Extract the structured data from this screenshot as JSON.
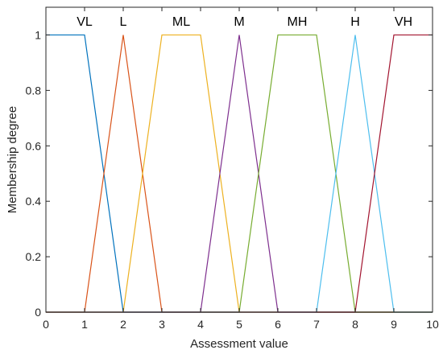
{
  "chart_data": {
    "type": "line",
    "title": "",
    "xlabel": "Assessment value",
    "ylabel": "Membership degree",
    "xlim": [
      0,
      10
    ],
    "ylim": [
      0,
      1.1
    ],
    "xticks": [
      "0",
      "1",
      "2",
      "3",
      "4",
      "5",
      "6",
      "7",
      "8",
      "9",
      "10"
    ],
    "yticks": [
      "0",
      "0.2",
      "0.4",
      "0.6",
      "0.8",
      "1"
    ],
    "grid": false,
    "series": [
      {
        "name": "VL",
        "color": "#0072BD",
        "x": [
          0,
          1,
          2,
          10
        ],
        "y": [
          1,
          1,
          0,
          0
        ]
      },
      {
        "name": "L",
        "color": "#D95319",
        "x": [
          0,
          1,
          2,
          3,
          10
        ],
        "y": [
          0,
          0,
          1,
          0,
          0
        ]
      },
      {
        "name": "ML",
        "color": "#EDB120",
        "x": [
          0,
          2,
          3,
          4,
          5,
          10
        ],
        "y": [
          0,
          0,
          1,
          1,
          0,
          0
        ]
      },
      {
        "name": "M",
        "color": "#7E2F8E",
        "x": [
          0,
          4,
          5,
          6,
          10
        ],
        "y": [
          0,
          0,
          1,
          0,
          0
        ]
      },
      {
        "name": "MH",
        "color": "#77AC30",
        "x": [
          0,
          5,
          6,
          7,
          8,
          10
        ],
        "y": [
          0,
          0,
          1,
          1,
          0,
          0
        ]
      },
      {
        "name": "H",
        "color": "#4DBEEE",
        "x": [
          0,
          7,
          8,
          9,
          10
        ],
        "y": [
          0,
          0,
          1,
          0,
          0
        ]
      },
      {
        "name": "VH",
        "color": "#A2142F",
        "x": [
          0,
          8,
          9,
          10
        ],
        "y": [
          0,
          0,
          1,
          1
        ]
      }
    ],
    "annotations": [
      {
        "text": "VL",
        "x": 1,
        "y": 1.05
      },
      {
        "text": "L",
        "x": 2,
        "y": 1.05
      },
      {
        "text": "ML",
        "x": 3.5,
        "y": 1.05
      },
      {
        "text": "M",
        "x": 5,
        "y": 1.05
      },
      {
        "text": "MH",
        "x": 6.5,
        "y": 1.05
      },
      {
        "text": "H",
        "x": 8,
        "y": 1.05
      },
      {
        "text": "VH",
        "x": 9.25,
        "y": 1.05
      }
    ]
  }
}
